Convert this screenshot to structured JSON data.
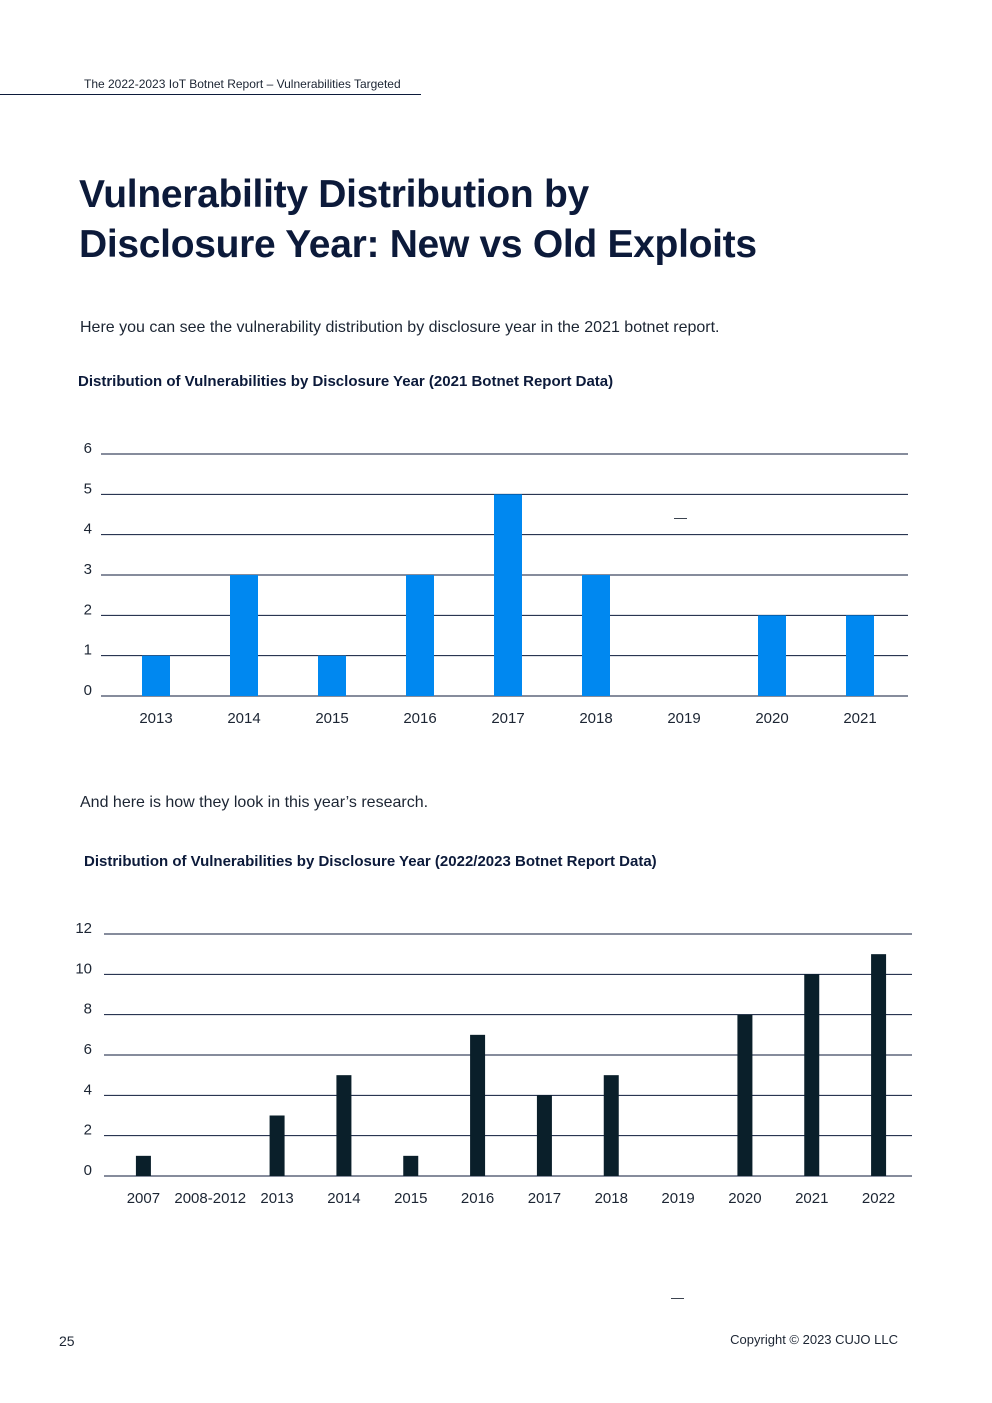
{
  "header": {
    "running_title": "The 2022-2023 IoT Botnet Report – Vulnerabilities Targeted"
  },
  "title": {
    "line1": "Vulnerability Distribution by",
    "line2": "Disclosure Year: New vs Old Exploits"
  },
  "intro_text": "Here you can see the vulnerability distribution by disclosure year in the 2021 botnet report.",
  "chart1_title": "Distribution of Vulnerabilities by Disclosure Year (2021 Botnet Report Data)",
  "transition_text": "And here is how they look in this year’s research.",
  "chart2_title": "Distribution of Vulnerabilities by Disclosure Year (2022/2023 Botnet Report Data)",
  "stray_mark": "—",
  "footer": {
    "page_number": "25",
    "copyright": "Copyright © 2023 CUJO LLC"
  },
  "colors": {
    "chart1_bar": "#0088f0",
    "chart2_bar": "#0a1f2a"
  },
  "chart_data": [
    {
      "type": "bar",
      "title": "Distribution of Vulnerabilities by Disclosure Year (2021 Botnet Report Data)",
      "categories": [
        "2013",
        "2014",
        "2015",
        "2016",
        "2017",
        "2018",
        "2019",
        "2020",
        "2021"
      ],
      "values": [
        1,
        3,
        1,
        3,
        5,
        3,
        0,
        2,
        2
      ],
      "ylim": [
        0,
        6
      ],
      "yticks": [
        0,
        1,
        2,
        3,
        4,
        5,
        6
      ],
      "xlabel": "",
      "ylabel": "",
      "grid": true
    },
    {
      "type": "bar",
      "title": "Distribution of Vulnerabilities by Disclosure Year (2022/2023 Botnet Report Data)",
      "categories": [
        "2007",
        "2008-2012",
        "2013",
        "2014",
        "2015",
        "2016",
        "2017",
        "2018",
        "2019",
        "2020",
        "2021",
        "2022"
      ],
      "values": [
        1,
        0,
        3,
        5,
        1,
        7,
        4,
        5,
        0,
        8,
        10,
        11
      ],
      "ylim": [
        0,
        12
      ],
      "yticks": [
        0,
        2,
        4,
        6,
        8,
        10,
        12
      ],
      "xlabel": "",
      "ylabel": "",
      "grid": true
    }
  ]
}
